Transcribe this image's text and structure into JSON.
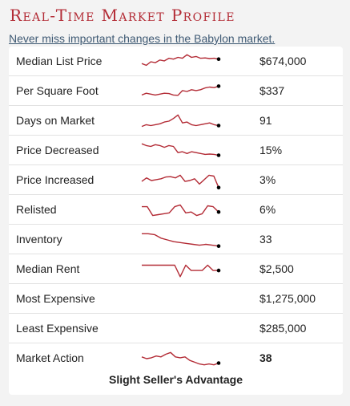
{
  "header": {
    "title": "Real-Time Market Profile",
    "subtitle_link": "Never miss important changes in the Babylon market."
  },
  "colors": {
    "accent": "#b32b35",
    "sparkline": "#b32b35",
    "link": "#3f5a74"
  },
  "rows": [
    {
      "label": "Median List Price",
      "value": "$674,000",
      "trend": [
        0.4,
        0.3,
        0.5,
        0.45,
        0.6,
        0.55,
        0.7,
        0.65,
        0.75,
        0.7,
        0.9,
        0.75,
        0.8,
        0.7,
        0.72,
        0.68,
        0.7,
        0.65
      ]
    },
    {
      "label": "Per Square Foot",
      "value": "$337",
      "trend": [
        0.3,
        0.4,
        0.35,
        0.3,
        0.35,
        0.4,
        0.38,
        0.3,
        0.28,
        0.55,
        0.5,
        0.6,
        0.55,
        0.6,
        0.7,
        0.75,
        0.72,
        0.8
      ]
    },
    {
      "label": "Days on Market",
      "value": "91",
      "trend": [
        0.2,
        0.3,
        0.25,
        0.3,
        0.35,
        0.45,
        0.5,
        0.65,
        0.85,
        0.4,
        0.45,
        0.3,
        0.25,
        0.3,
        0.35,
        0.4,
        0.3,
        0.25
      ]
    },
    {
      "label": "Price Decreased",
      "value": "15%",
      "trend": [
        0.9,
        0.8,
        0.75,
        0.85,
        0.8,
        0.7,
        0.8,
        0.75,
        0.4,
        0.45,
        0.35,
        0.45,
        0.4,
        0.35,
        0.3,
        0.32,
        0.3,
        0.25
      ]
    },
    {
      "label": "Price Increased",
      "value": "3%",
      "trend": [
        0.45,
        0.65,
        0.5,
        0.55,
        0.6,
        0.7,
        0.72,
        0.65,
        0.8,
        0.45,
        0.5,
        0.6,
        0.3,
        0.55,
        0.8,
        0.75,
        0.1
      ]
    },
    {
      "label": "Relisted",
      "value": "6%",
      "trend": [
        0.7,
        0.7,
        0.2,
        0.25,
        0.3,
        0.35,
        0.7,
        0.8,
        0.35,
        0.4,
        0.2,
        0.3,
        0.75,
        0.7,
        0.4
      ]
    },
    {
      "label": "Inventory",
      "value": "33",
      "trend": [
        0.85,
        0.85,
        0.8,
        0.6,
        0.5,
        0.4,
        0.35,
        0.3,
        0.25,
        0.2,
        0.25,
        0.2,
        0.15
      ]
    },
    {
      "label": "Median Rent",
      "value": "$2,500",
      "trend": [
        0.75,
        0.75,
        0.75,
        0.75,
        0.75,
        0.75,
        0.75,
        0.1,
        0.75,
        0.45,
        0.45,
        0.45,
        0.75,
        0.45,
        0.45
      ]
    },
    {
      "label": "Most Expensive",
      "value": "$1,275,000",
      "trend": []
    },
    {
      "label": "Least Expensive",
      "value": "$285,000",
      "trend": []
    },
    {
      "label": "Market Action",
      "value": "38",
      "bold": true,
      "trend": [
        0.6,
        0.5,
        0.55,
        0.65,
        0.6,
        0.75,
        0.85,
        0.6,
        0.55,
        0.6,
        0.4,
        0.3,
        0.2,
        0.15,
        0.2,
        0.15,
        0.25
      ]
    }
  ],
  "footer": {
    "text": "Slight Seller's Advantage"
  }
}
